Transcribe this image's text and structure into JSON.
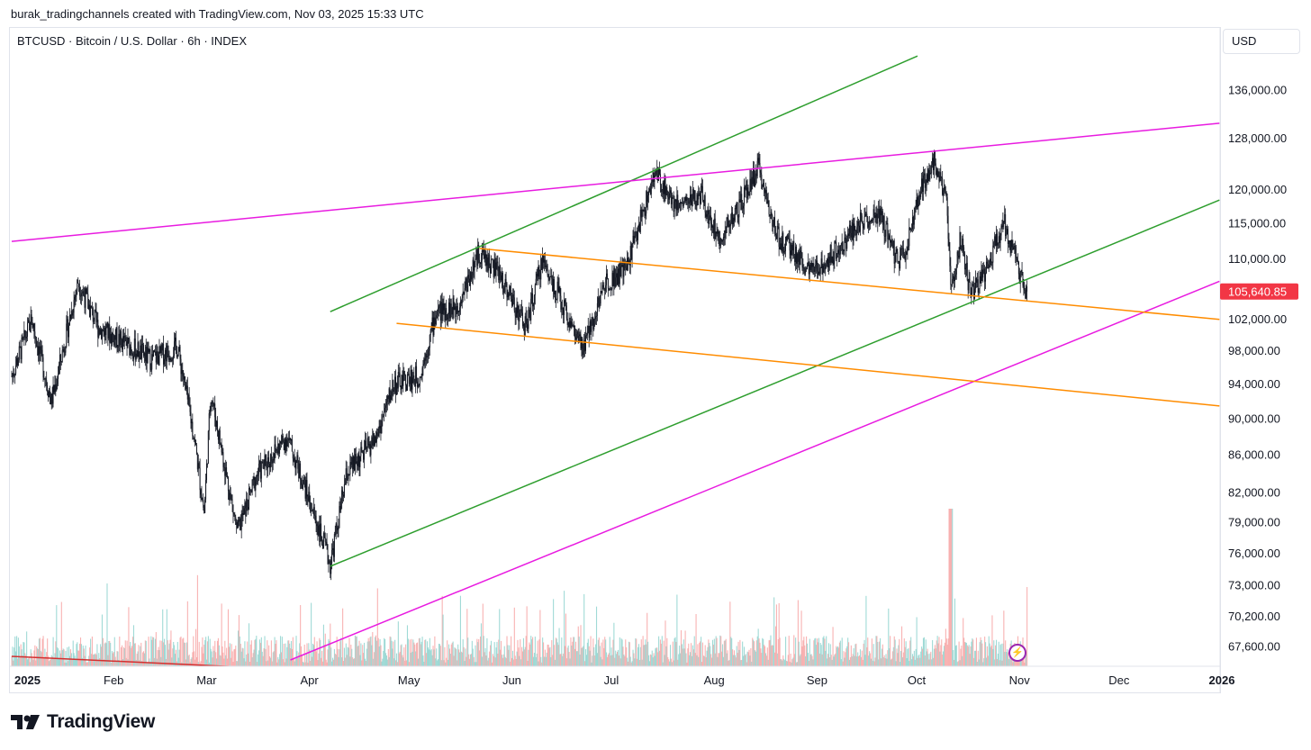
{
  "header": {
    "attribution": "burak_tradingchannels created with TradingView.com, Nov 03, 2025 15:33 UTC"
  },
  "symbol": {
    "title": "BTCUSD · Bitcoin / U.S. Dollar · 6h · INDEX",
    "currency": "USD"
  },
  "footer": {
    "brand": "TradingView"
  },
  "colors": {
    "green": "#2e9e2e",
    "magenta": "#e81be0",
    "orange": "#ff8c00",
    "red": "#d32f2f",
    "price_badge": "#f23645",
    "vol_up": "#8fd3cf",
    "vol_down": "#f7a4a4"
  },
  "icons": {
    "lightning": "lightning-icon",
    "logo": "tradingview-logo-icon"
  },
  "chart_data": {
    "type": "candlestick",
    "x_ticks": [
      "2025",
      "Feb",
      "Mar",
      "Apr",
      "May",
      "Jun",
      "Jul",
      "Aug",
      "Sep",
      "Oct",
      "Nov",
      "Dec",
      "2026"
    ],
    "y_ticks": [
      "136,000.00",
      "128,000.00",
      "120,000.00",
      "115,000.00",
      "110,000.00",
      "102,000.00",
      "98,000.00",
      "94,000.00",
      "90,000.00",
      "86,000.00",
      "82,000.00",
      "79,000.00",
      "76,000.00",
      "73,000.00",
      "70,200.00",
      "67,600.00"
    ],
    "y_scale": "log",
    "last_price": "105,640.85",
    "price_path": [
      [
        "2025-01-01",
        95000
      ],
      [
        "2025-01-07",
        102000
      ],
      [
        "2025-01-13",
        92000
      ],
      [
        "2025-01-21",
        107000
      ],
      [
        "2025-01-27",
        101000
      ],
      [
        "2025-02-04",
        99000
      ],
      [
        "2025-02-12",
        97000
      ],
      [
        "2025-02-20",
        98500
      ],
      [
        "2025-02-25",
        88000
      ],
      [
        "2025-02-28",
        80000
      ],
      [
        "2025-03-02",
        93000
      ],
      [
        "2025-03-10",
        78000
      ],
      [
        "2025-03-16",
        84000
      ],
      [
        "2025-03-25",
        88000
      ],
      [
        "2025-03-31",
        82000
      ],
      [
        "2025-04-07",
        75000
      ],
      [
        "2025-04-12",
        84000
      ],
      [
        "2025-04-21",
        88000
      ],
      [
        "2025-04-26",
        94000
      ],
      [
        "2025-05-04",
        95000
      ],
      [
        "2025-05-09",
        103000
      ],
      [
        "2025-05-15",
        103500
      ],
      [
        "2025-05-22",
        111000
      ],
      [
        "2025-05-28",
        108000
      ],
      [
        "2025-06-05",
        101000
      ],
      [
        "2025-06-10",
        110000
      ],
      [
        "2025-06-15",
        105000
      ],
      [
        "2025-06-22",
        98000
      ],
      [
        "2025-06-29",
        107000
      ],
      [
        "2025-07-05",
        108500
      ],
      [
        "2025-07-11",
        118000
      ],
      [
        "2025-07-14",
        122500
      ],
      [
        "2025-07-20",
        118000
      ],
      [
        "2025-07-28",
        119000
      ],
      [
        "2025-08-02",
        113000
      ],
      [
        "2025-08-08",
        117000
      ],
      [
        "2025-08-14",
        123500
      ],
      [
        "2025-08-20",
        113000
      ],
      [
        "2025-08-25",
        111000
      ],
      [
        "2025-08-30",
        108000
      ],
      [
        "2025-09-06",
        111000
      ],
      [
        "2025-09-14",
        115500
      ],
      [
        "2025-09-20",
        116000
      ],
      [
        "2025-09-25",
        109500
      ],
      [
        "2025-09-28",
        112000
      ],
      [
        "2025-10-02",
        120000
      ],
      [
        "2025-10-06",
        125000
      ],
      [
        "2025-10-10",
        117000
      ],
      [
        "2025-10-11",
        106000
      ],
      [
        "2025-10-14",
        113000
      ],
      [
        "2025-10-17",
        105000
      ],
      [
        "2025-10-22",
        109000
      ],
      [
        "2025-10-27",
        115500
      ],
      [
        "2025-10-31",
        109000
      ],
      [
        "2025-11-03",
        105640.85
      ]
    ],
    "trendlines": [
      {
        "color": "green",
        "from": [
          "2025-04-07",
          74800
        ],
        "to": [
          "2025-12-31",
          118500
        ]
      },
      {
        "color": "green",
        "from": [
          "2025-04-07",
          103000
        ],
        "to": [
          "2025-10-01",
          142000
        ]
      },
      {
        "color": "magenta",
        "from": [
          "2025-01-01",
          112500
        ],
        "to": [
          "2025-12-31",
          130500
        ]
      },
      {
        "color": "magenta",
        "from": [
          "2025-03-26",
          66500
        ],
        "to": [
          "2025-12-31",
          107000
        ]
      },
      {
        "color": "orange",
        "from": [
          "2025-05-22",
          111500
        ],
        "to": [
          "2025-12-31",
          102000
        ]
      },
      {
        "color": "orange",
        "from": [
          "2025-04-27",
          101500
        ],
        "to": [
          "2025-12-31",
          91500
        ]
      },
      {
        "color": "red",
        "from": [
          "2025-01-01",
          66800
        ],
        "to": [
          "2025-03-20",
          65800
        ]
      }
    ]
  }
}
